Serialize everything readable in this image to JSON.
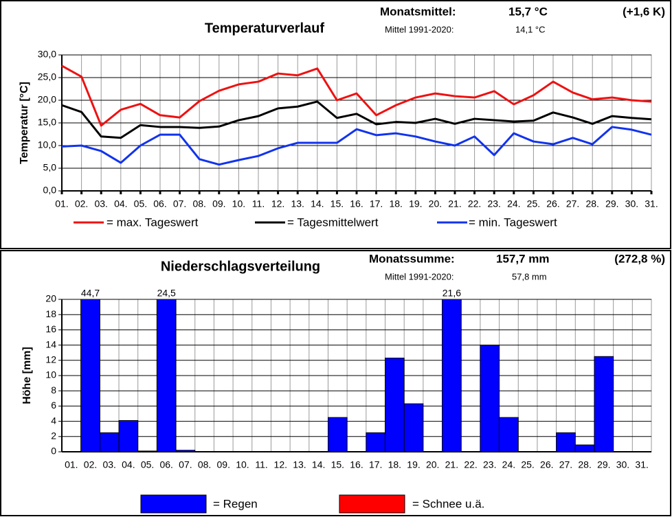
{
  "chart_data": [
    {
      "type": "line",
      "title": "Temperaturverlauf",
      "annotations": [
        "Monatsmittel:",
        "15,7 °C",
        "(+1,6 K)",
        "Mittel 1991-2020:",
        "14,1  °C"
      ],
      "ylabel": "Temperatur [°C]",
      "categories": [
        "01.",
        "02.",
        "03.",
        "04.",
        "05.",
        "06.",
        "07.",
        "08.",
        "09.",
        "10.",
        "11.",
        "12.",
        "13.",
        "14.",
        "15.",
        "16.",
        "17.",
        "18.",
        "19.",
        "20.",
        "21.",
        "22.",
        "23.",
        "24.",
        "25.",
        "26.",
        "27.",
        "28.",
        "29.",
        "30.",
        "31."
      ],
      "series": [
        {
          "name": "= max.  Tageswert",
          "color": "#ee1111",
          "values": [
            27.6,
            25.2,
            14.4,
            17.9,
            19.2,
            16.7,
            16.2,
            19.8,
            22.1,
            23.5,
            24.1,
            25.9,
            25.5,
            27.0,
            20.0,
            21.5,
            16.7,
            18.9,
            20.6,
            21.5,
            20.9,
            20.6,
            22.0,
            19.1,
            21.1,
            24.1,
            21.7,
            20.2,
            20.6,
            20.0,
            19.7
          ]
        },
        {
          "name": "= Tagesmittelwert",
          "color": "#000000",
          "values": [
            18.9,
            17.4,
            12.0,
            11.7,
            14.5,
            14.1,
            14.1,
            13.9,
            14.2,
            15.6,
            16.5,
            18.2,
            18.6,
            19.7,
            16.1,
            17.0,
            14.7,
            15.2,
            15.0,
            15.9,
            14.8,
            15.9,
            15.6,
            15.3,
            15.5,
            17.3,
            16.2,
            14.8,
            16.5,
            16.1,
            15.8
          ]
        },
        {
          "name": "= min. Tageswert",
          "color": "#1133ee",
          "values": [
            9.8,
            10.0,
            8.8,
            6.2,
            10.0,
            12.4,
            12.4,
            7.0,
            5.8,
            6.8,
            7.7,
            9.4,
            10.6,
            10.6,
            10.6,
            13.6,
            12.3,
            12.7,
            12.0,
            10.9,
            10.0,
            12.0,
            7.9,
            12.7,
            10.9,
            10.3,
            11.7,
            10.3,
            14.1,
            13.5,
            12.4
          ]
        }
      ],
      "ylim": [
        0,
        30
      ],
      "yticks": [
        {
          "value": 0,
          "label": "0,0"
        },
        {
          "value": 5,
          "label": "5,0"
        },
        {
          "value": 10,
          "label": "10,0"
        },
        {
          "value": 15,
          "label": "15,0"
        },
        {
          "value": 20,
          "label": "20,0"
        },
        {
          "value": 25,
          "label": "25,0"
        },
        {
          "value": 30,
          "label": "30,0"
        }
      ],
      "grid": true
    },
    {
      "type": "bar",
      "title": "Niederschlagsverteilung",
      "annotations": [
        "Monatssumme:",
        "157,7  mm",
        "(272,8 %)",
        "Mittel 1991-2020:",
        "57,8   mm"
      ],
      "ylabel": "Höhe [mm]",
      "categories": [
        "01.",
        "02.",
        "03.",
        "04.",
        "05.",
        "06.",
        "07.",
        "08.",
        "09.",
        "10.",
        "11.",
        "12.",
        "13.",
        "14.",
        "15.",
        "16.",
        "17.",
        "18.",
        "19.",
        "20.",
        "21.",
        "22.",
        "23.",
        "24.",
        "25.",
        "26.",
        "27.",
        "28.",
        "29.",
        "30.",
        "31."
      ],
      "series": [
        {
          "name": "= Regen",
          "color": "#0000ff",
          "values": [
            0,
            44.7,
            2.5,
            4.1,
            0.1,
            24.5,
            0.2,
            0,
            0,
            0,
            0,
            0,
            0,
            0,
            4.5,
            0,
            2.5,
            12.3,
            6.3,
            0,
            21.6,
            0,
            14.0,
            4.5,
            0,
            0,
            2.5,
            0.9,
            12.5,
            0,
            0
          ],
          "value_labels": [
            null,
            "44,7",
            null,
            null,
            null,
            "24,5",
            null,
            null,
            null,
            null,
            null,
            null,
            null,
            null,
            null,
            null,
            null,
            null,
            null,
            null,
            "21,6",
            null,
            null,
            null,
            null,
            null,
            null,
            null,
            null,
            null,
            null
          ]
        },
        {
          "name": "= Schnee u.ä.",
          "color": "#ff0000",
          "values": [
            0,
            0,
            0,
            0,
            0,
            0,
            0,
            0,
            0,
            0,
            0,
            0,
            0,
            0,
            0,
            0,
            0,
            0,
            0,
            0,
            0,
            0,
            0,
            0,
            0,
            0,
            0,
            0,
            0,
            0,
            0
          ]
        }
      ],
      "ylim": [
        0,
        20
      ],
      "yticks": [
        0,
        2,
        4,
        6,
        8,
        10,
        12,
        14,
        16,
        18,
        20
      ],
      "grid": true
    }
  ]
}
